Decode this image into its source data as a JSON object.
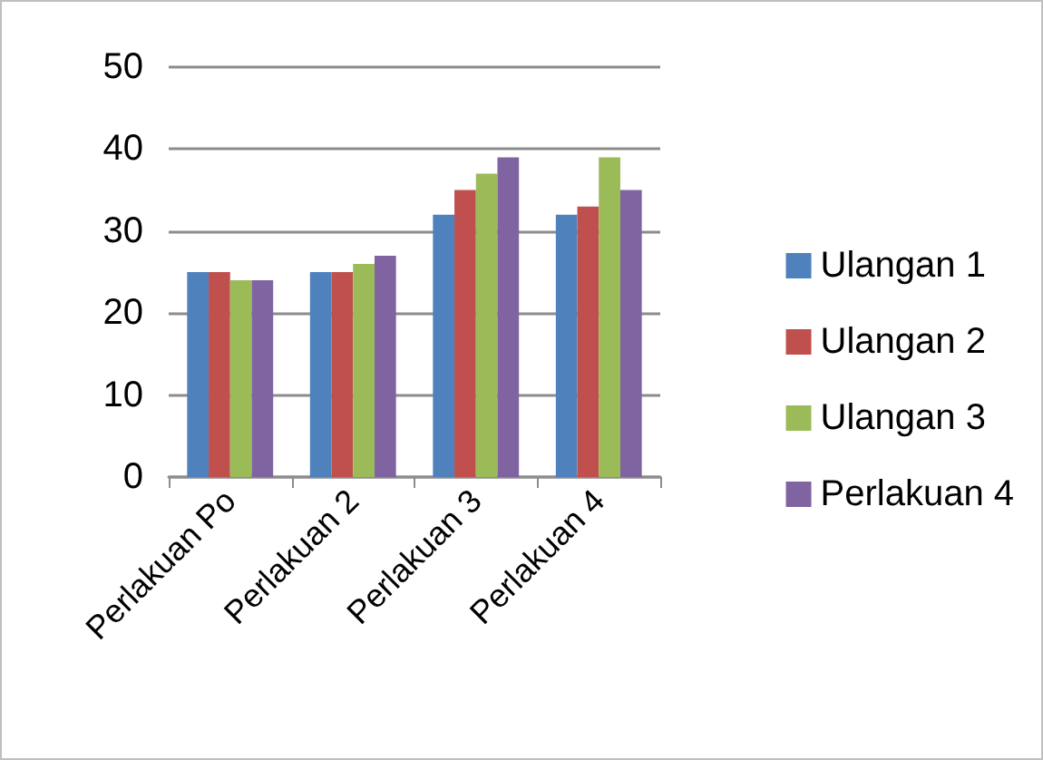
{
  "chart_data": {
    "type": "bar",
    "categories": [
      "Perlakuan Po",
      "Perlakuan 2",
      "Perlakuan 3",
      "Perlakuan 4"
    ],
    "series": [
      {
        "name": "Ulangan 1",
        "color": "#4f81bd",
        "values": [
          25,
          25,
          32,
          32
        ]
      },
      {
        "name": "Ulangan 2",
        "color": "#c0504d",
        "values": [
          25,
          25,
          35,
          33
        ]
      },
      {
        "name": "Ulangan 3",
        "color": "#9bbb59",
        "values": [
          24,
          26,
          37,
          39
        ]
      },
      {
        "name": "Perlakuan 4",
        "color": "#8064a2",
        "values": [
          24,
          27,
          39,
          35
        ]
      }
    ],
    "ylim": [
      0,
      50
    ],
    "yticks": [
      0,
      10,
      20,
      30,
      40,
      50
    ],
    "grid": "y",
    "legend": "right"
  }
}
